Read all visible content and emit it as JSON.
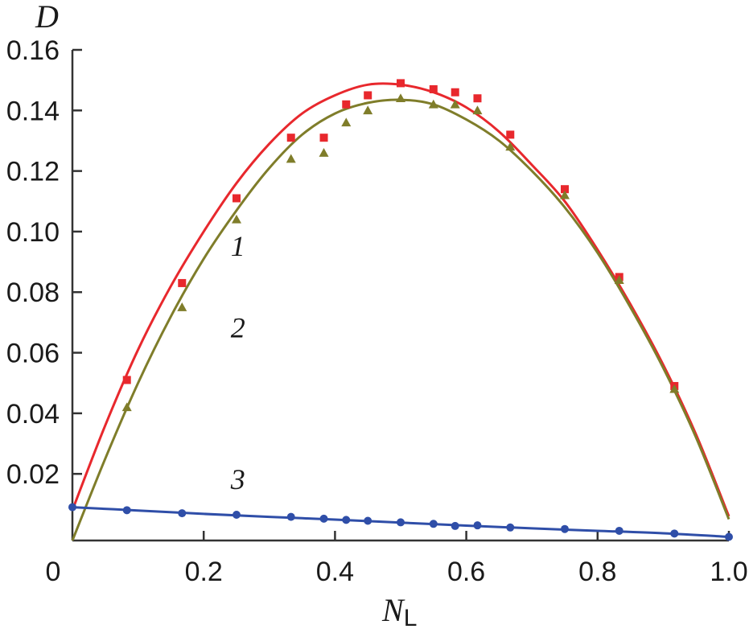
{
  "chart_data": {
    "type": "scatter",
    "xlabel": "N",
    "xlabel_sub": "L",
    "ylabel": "D",
    "xlim": [
      0,
      1.0
    ],
    "ylim": [
      -0.002,
      0.16
    ],
    "x_ticks": [
      {
        "value": 0,
        "label": "0"
      },
      {
        "value": 0.2,
        "label": "0.2"
      },
      {
        "value": 0.4,
        "label": "0.4"
      },
      {
        "value": 0.6,
        "label": "0.6"
      },
      {
        "value": 0.8,
        "label": "0.8"
      },
      {
        "value": 1.0,
        "label": "1.0"
      }
    ],
    "y_ticks": [
      {
        "value": 0.02,
        "label": "0.02"
      },
      {
        "value": 0.04,
        "label": "0.04"
      },
      {
        "value": 0.06,
        "label": "0.06"
      },
      {
        "value": 0.08,
        "label": "0.08"
      },
      {
        "value": 0.1,
        "label": "0.10"
      },
      {
        "value": 0.12,
        "label": "0.12"
      },
      {
        "value": 0.14,
        "label": "0.14"
      },
      {
        "value": 0.16,
        "label": "0.16"
      }
    ],
    "series": [
      {
        "label": "1",
        "color": "#e8282d",
        "marker": "square",
        "points": [
          [
            0.083,
            0.051
          ],
          [
            0.167,
            0.083
          ],
          [
            0.25,
            0.111
          ],
          [
            0.333,
            0.131
          ],
          [
            0.383,
            0.131
          ],
          [
            0.417,
            0.142
          ],
          [
            0.45,
            0.145
          ],
          [
            0.5,
            0.149
          ],
          [
            0.55,
            0.147
          ],
          [
            0.583,
            0.146
          ],
          [
            0.617,
            0.144
          ],
          [
            0.667,
            0.132
          ],
          [
            0.75,
            0.114
          ],
          [
            0.833,
            0.085
          ],
          [
            0.917,
            0.049
          ]
        ],
        "fit": [
          [
            0.0,
            0.008
          ],
          [
            0.05,
            0.036
          ],
          [
            0.1,
            0.061
          ],
          [
            0.15,
            0.082
          ],
          [
            0.2,
            0.1
          ],
          [
            0.25,
            0.116
          ],
          [
            0.3,
            0.129
          ],
          [
            0.35,
            0.139
          ],
          [
            0.4,
            0.145
          ],
          [
            0.45,
            0.1485
          ],
          [
            0.5,
            0.1485
          ],
          [
            0.55,
            0.146
          ],
          [
            0.6,
            0.141
          ],
          [
            0.65,
            0.133
          ],
          [
            0.7,
            0.122
          ],
          [
            0.75,
            0.11
          ],
          [
            0.8,
            0.094
          ],
          [
            0.85,
            0.076
          ],
          [
            0.9,
            0.056
          ],
          [
            0.95,
            0.033
          ],
          [
            1.0,
            0.006
          ]
        ]
      },
      {
        "label": "2",
        "color": "#7f7d2a",
        "marker": "triangle",
        "points": [
          [
            0.083,
            0.042
          ],
          [
            0.167,
            0.075
          ],
          [
            0.25,
            0.104
          ],
          [
            0.333,
            0.124
          ],
          [
            0.383,
            0.126
          ],
          [
            0.417,
            0.136
          ],
          [
            0.45,
            0.14
          ],
          [
            0.5,
            0.144
          ],
          [
            0.55,
            0.142
          ],
          [
            0.583,
            0.142
          ],
          [
            0.617,
            0.14
          ],
          [
            0.667,
            0.128
          ],
          [
            0.75,
            0.112
          ],
          [
            0.833,
            0.084
          ],
          [
            0.917,
            0.048
          ]
        ],
        "fit": [
          [
            0.0,
            -0.002
          ],
          [
            0.05,
            0.025
          ],
          [
            0.1,
            0.05
          ],
          [
            0.15,
            0.072
          ],
          [
            0.2,
            0.091
          ],
          [
            0.25,
            0.107
          ],
          [
            0.3,
            0.121
          ],
          [
            0.35,
            0.132
          ],
          [
            0.4,
            0.139
          ],
          [
            0.45,
            0.1425
          ],
          [
            0.5,
            0.1435
          ],
          [
            0.55,
            0.142
          ],
          [
            0.6,
            0.137
          ],
          [
            0.65,
            0.13
          ],
          [
            0.7,
            0.12
          ],
          [
            0.75,
            0.108
          ],
          [
            0.8,
            0.093
          ],
          [
            0.85,
            0.075
          ],
          [
            0.9,
            0.055
          ],
          [
            0.95,
            0.032
          ],
          [
            1.0,
            0.005
          ]
        ]
      },
      {
        "label": "3",
        "color": "#2f4ea8",
        "marker": "circle",
        "points": [
          [
            0.0,
            0.009
          ],
          [
            0.083,
            0.008
          ],
          [
            0.167,
            0.007
          ],
          [
            0.25,
            0.0065
          ],
          [
            0.333,
            0.0058
          ],
          [
            0.383,
            0.0052
          ],
          [
            0.417,
            0.0048
          ],
          [
            0.45,
            0.0045
          ],
          [
            0.5,
            0.004
          ],
          [
            0.55,
            0.0035
          ],
          [
            0.583,
            0.0028
          ],
          [
            0.617,
            0.003
          ],
          [
            0.667,
            0.0023
          ],
          [
            0.75,
            0.0018
          ],
          [
            0.833,
            0.0012
          ],
          [
            0.917,
            0.0003
          ],
          [
            1.0,
            -0.0008
          ]
        ],
        "fit": [
          [
            0.0,
            0.009
          ],
          [
            0.1,
            0.0079
          ],
          [
            0.2,
            0.0068
          ],
          [
            0.3,
            0.0058
          ],
          [
            0.4,
            0.0049
          ],
          [
            0.5,
            0.0039
          ],
          [
            0.6,
            0.0029
          ],
          [
            0.7,
            0.002
          ],
          [
            0.8,
            0.0012
          ],
          [
            0.9,
            0.0004
          ],
          [
            1.0,
            -0.0008
          ]
        ]
      }
    ],
    "curve_labels": [
      {
        "text": "1",
        "x": 0.17,
        "y": 0.092
      },
      {
        "text": "2",
        "x": 0.17,
        "y": 0.065
      },
      {
        "text": "3",
        "x": 0.17,
        "y": 0.015
      }
    ]
  }
}
